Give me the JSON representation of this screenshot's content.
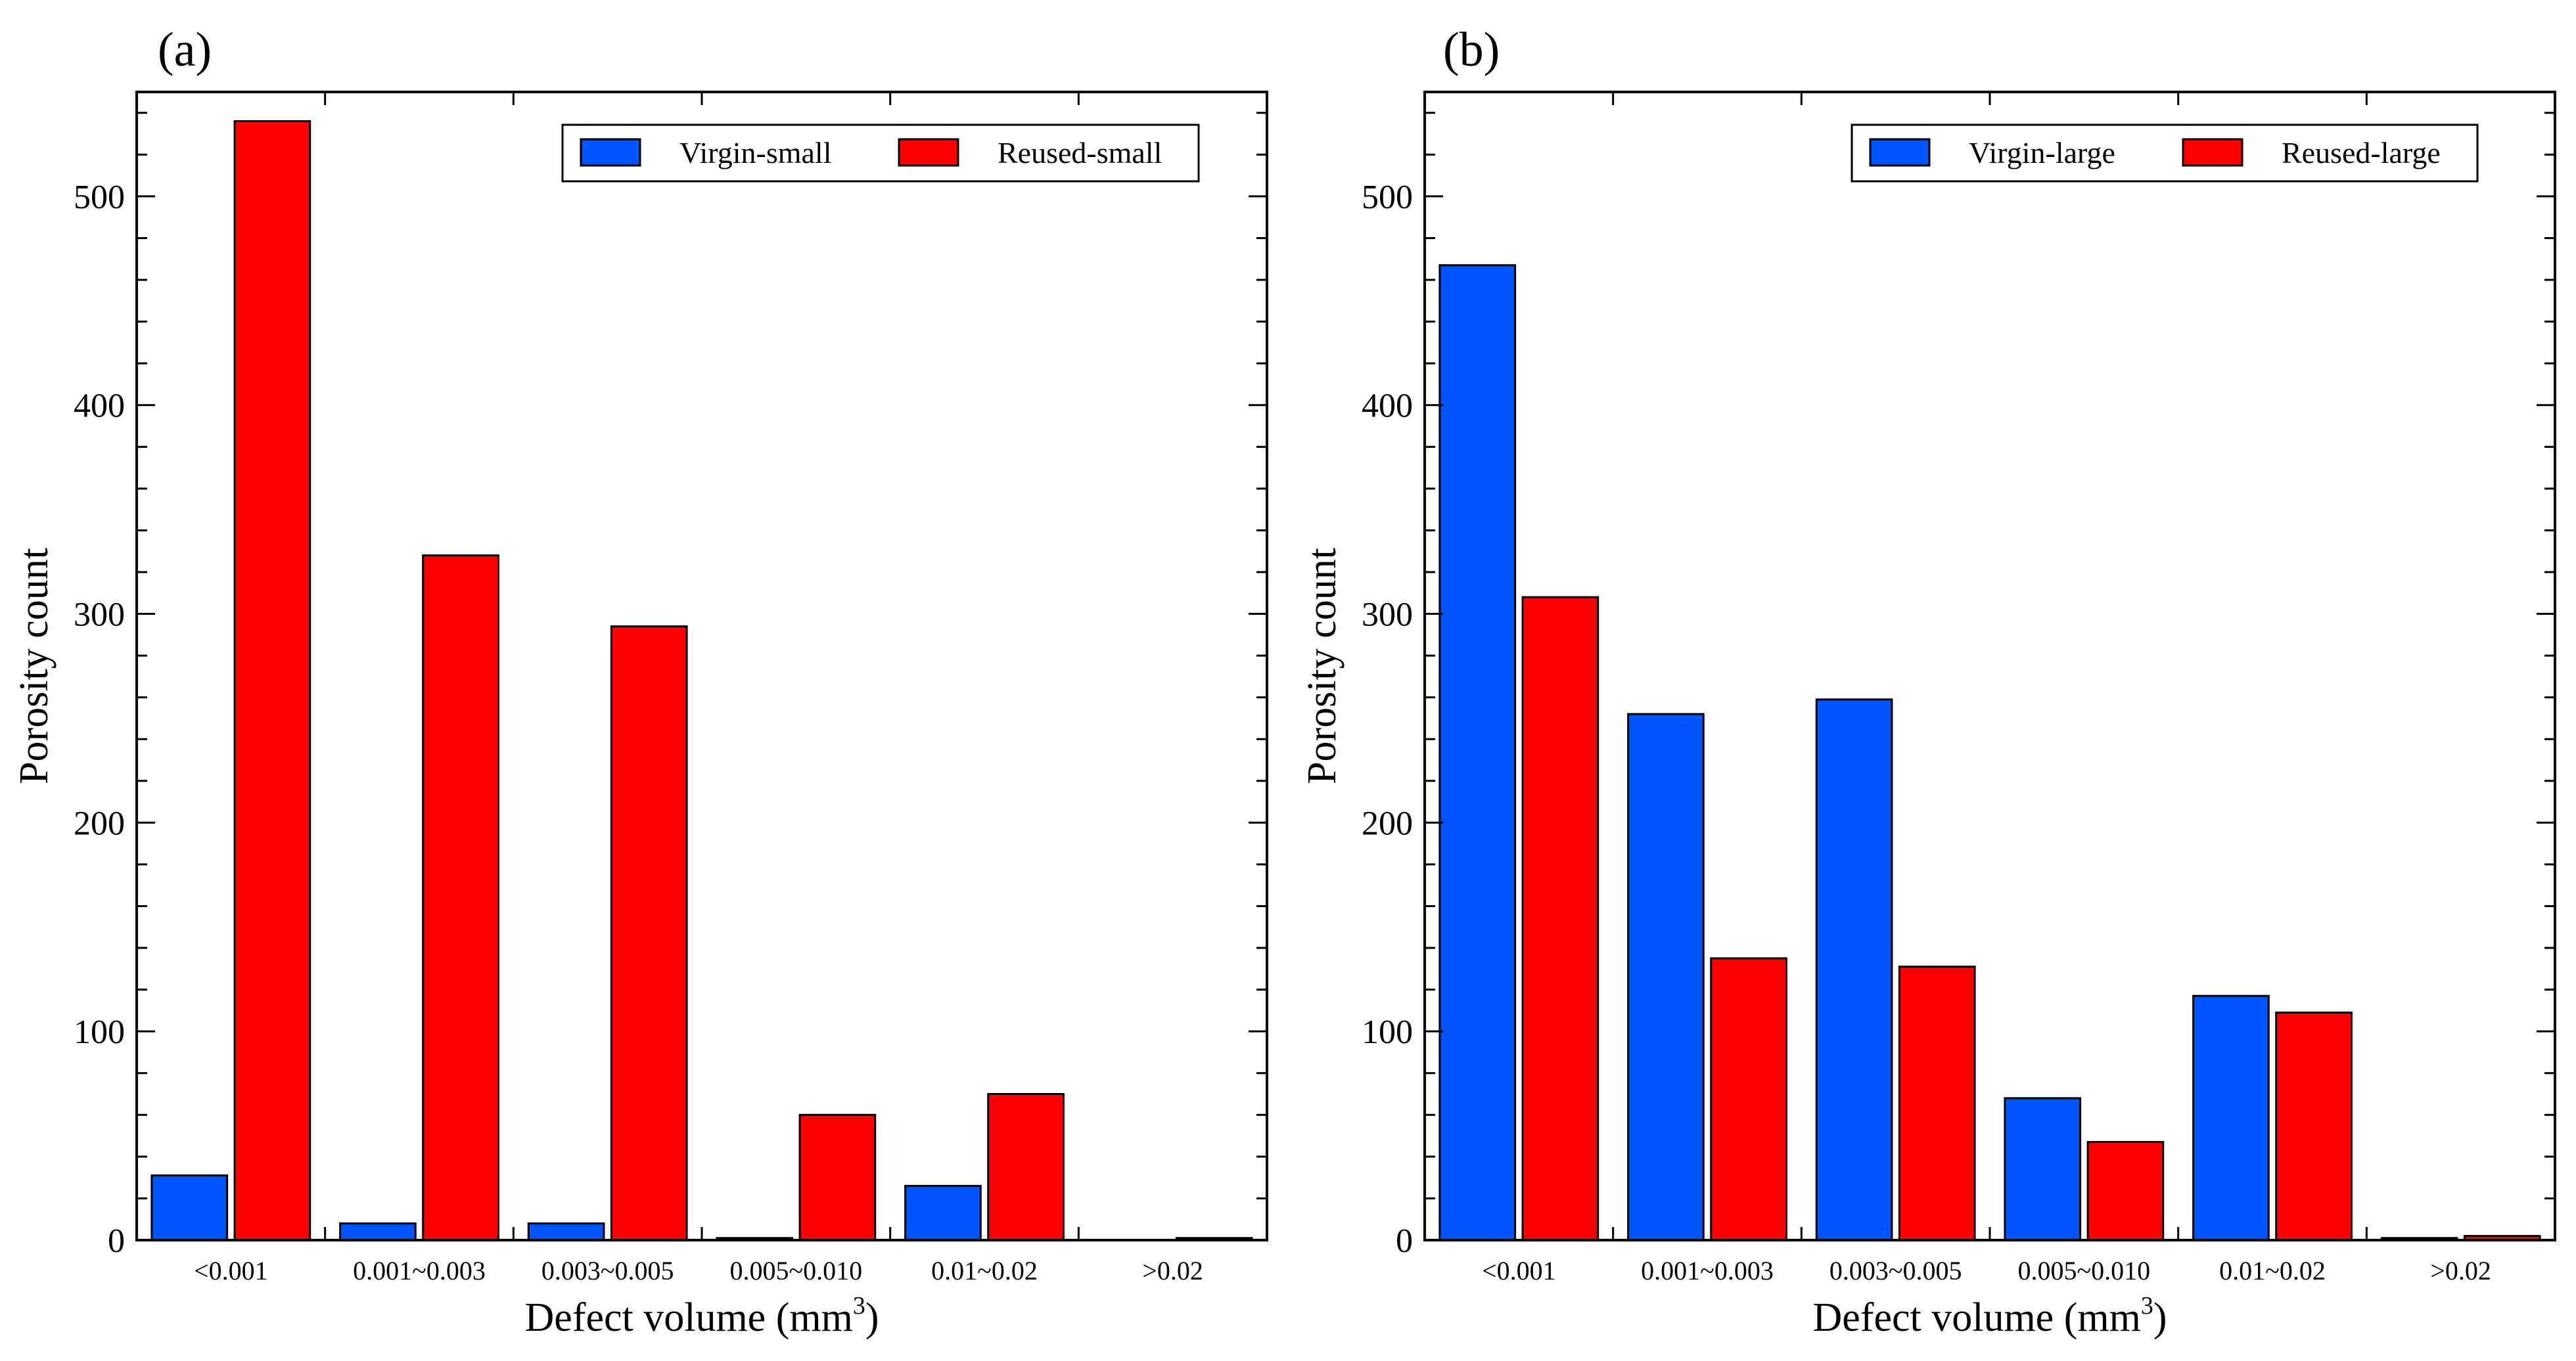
{
  "chart_data": [
    {
      "panel_label": "(a)",
      "type": "bar",
      "categories": [
        "<0.001",
        "0.001~0.003",
        "0.003~0.005",
        "0.005~0.010",
        "0.01~0.02",
        ">0.02"
      ],
      "series": [
        {
          "name": "Virgin-small",
          "color": "#0055ff",
          "values": [
            31,
            8,
            8,
            1,
            26,
            0
          ]
        },
        {
          "name": "Reused-small",
          "color": "#ff0000",
          "values": [
            536,
            328,
            294,
            60,
            70,
            1
          ]
        }
      ],
      "xlabel": "Defect volume (mm",
      "xlabel_sup": "3",
      "xlabel_end": ")",
      "ylabel": "Porosity count",
      "ylim": [
        0,
        550
      ],
      "yticks": [
        0,
        100,
        200,
        300,
        400,
        500
      ],
      "legend_position": "top-right"
    },
    {
      "panel_label": "(b)",
      "type": "bar",
      "categories": [
        "<0.001",
        "0.001~0.003",
        "0.003~0.005",
        "0.005~0.010",
        "0.01~0.02",
        ">0.02"
      ],
      "series": [
        {
          "name": "Virgin-large",
          "color": "#0055ff",
          "values": [
            467,
            252,
            259,
            68,
            117,
            1
          ]
        },
        {
          "name": "Reused-large",
          "color": "#ff0000",
          "values": [
            308,
            135,
            131,
            47,
            109,
            2
          ]
        }
      ],
      "xlabel": "Defect volume (mm",
      "xlabel_sup": "3",
      "xlabel_end": ")",
      "ylabel": "Porosity count",
      "ylim": [
        0,
        550
      ],
      "yticks": [
        0,
        100,
        200,
        300,
        400,
        500
      ],
      "legend_position": "top-right"
    }
  ]
}
